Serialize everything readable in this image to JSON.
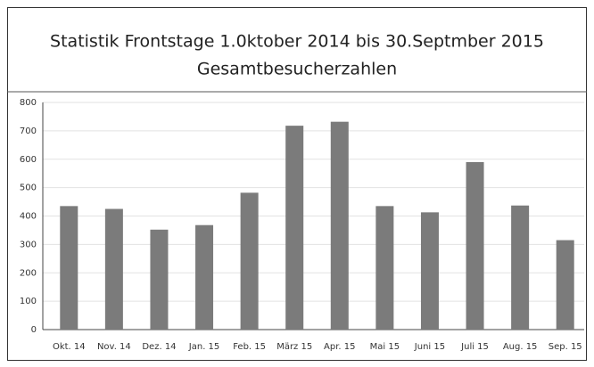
{
  "chart_data": {
    "type": "bar",
    "title": "Statistik Frontstage 1.0ktober 2014 bis 30.Septmber 2015",
    "subtitle": "Gesamtbesucherzahlen",
    "categories": [
      "Okt. 14",
      "Nov. 14",
      "Dez. 14",
      "Jan. 15",
      "Feb. 15",
      "März 15",
      "Apr. 15",
      "Mai 15",
      "Juni 15",
      "Juli 15",
      "Aug. 15",
      "Sep. 15"
    ],
    "values": [
      435,
      425,
      352,
      368,
      482,
      718,
      732,
      435,
      413,
      590,
      437,
      315
    ],
    "color": "#7b7b7b",
    "ylim": [
      0,
      800
    ],
    "yticks": [
      0,
      100,
      200,
      300,
      400,
      500,
      600,
      700,
      800
    ],
    "grid": true
  }
}
